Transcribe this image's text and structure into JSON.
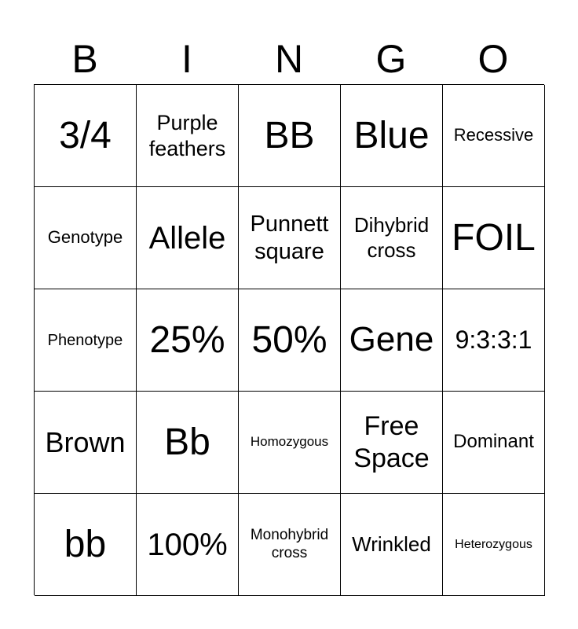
{
  "header": [
    "B",
    "I",
    "N",
    "G",
    "O"
  ],
  "cells": [
    "3/4",
    "Purple feathers",
    "BB",
    "Blue",
    "Recessive",
    "Genotype",
    "Allele",
    "Punnett square",
    "Dihybrid cross",
    "FOIL",
    "Phenotype",
    "25%",
    "50%",
    "Gene",
    "9:3:3:1",
    "Brown",
    "Bb",
    "Homozygous",
    "Free Space",
    "Dominant",
    "bb",
    "100%",
    "Monohybrid cross",
    "Wrinkled",
    "Heterozygous"
  ]
}
